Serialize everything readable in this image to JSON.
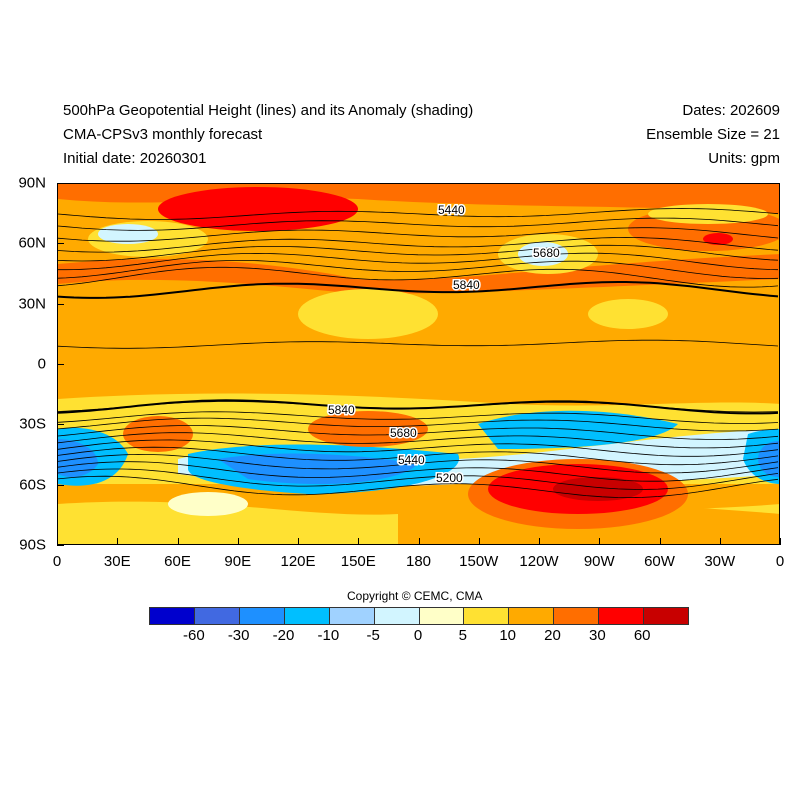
{
  "header": {
    "title": "500hPa Geopotential Height (lines) and its Anomaly (shading)",
    "subtitle": "CMA-CPSv3 monthly forecast",
    "initial": "Initial date: 20260301",
    "dates": "Dates: 202609",
    "ensemble": "Ensemble Size = 21",
    "units": "Units: gpm"
  },
  "map": {
    "x_ticks": [
      "0",
      "30E",
      "60E",
      "90E",
      "120E",
      "150E",
      "180",
      "150W",
      "120W",
      "90W",
      "60W",
      "30W",
      "0"
    ],
    "y_ticks": [
      "90N",
      "60N",
      "30N",
      "0",
      "30S",
      "60S",
      "90S"
    ],
    "contour_labels": [
      "5440",
      "5680",
      "5840",
      "5840",
      "5680",
      "5440",
      "5200"
    ]
  },
  "colorbar": {
    "copyright": "Copyright © CEMC, CMA",
    "colors": [
      "#0000CD",
      "#4169E1",
      "#1E90FF",
      "#00BFFF",
      "#A0D2FF",
      "#D2F5FF",
      "#FFFFC8",
      "#FFE132",
      "#FFAA00",
      "#FF6E00",
      "#FF0000",
      "#C80000"
    ],
    "labels": [
      "-60",
      "-30",
      "-20",
      "-10",
      "-5",
      "0",
      "5",
      "10",
      "20",
      "30",
      "60"
    ]
  }
}
